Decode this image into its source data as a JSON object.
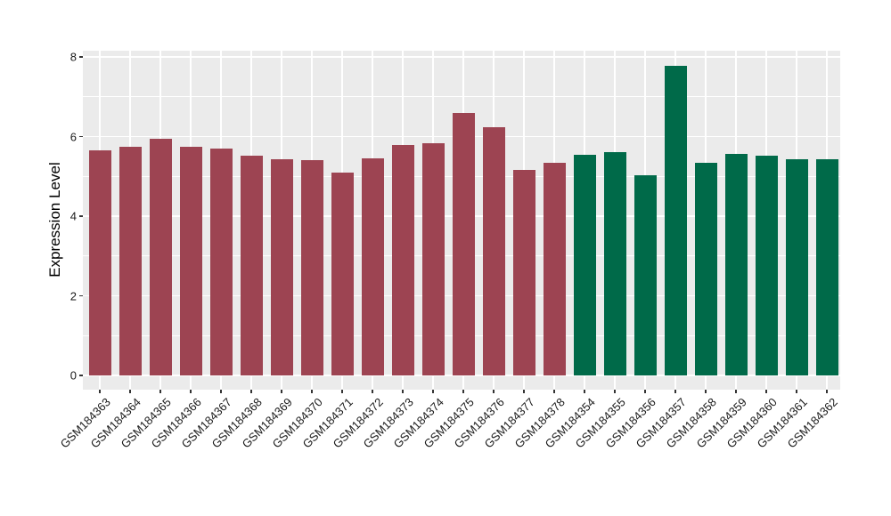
{
  "chart_data": {
    "type": "bar",
    "title": "",
    "xlabel": "",
    "ylabel": "Expression Level",
    "ylim": [
      -0.36,
      8.16
    ],
    "yticks": [
      0,
      2,
      4,
      6,
      8
    ],
    "yminorticks": [
      1,
      3,
      5,
      7
    ],
    "grid": "on",
    "legend_position": "none",
    "panel_background": "#EBEBEB",
    "gridline_color": "#FFFFFF",
    "tick_color": "#333333",
    "axis_text_color": "#1a1a1a",
    "categories": [
      "GSM184363",
      "GSM184364",
      "GSM184365",
      "GSM184366",
      "GSM184367",
      "GSM184368",
      "GSM184369",
      "GSM184370",
      "GSM184371",
      "GSM184372",
      "GSM184373",
      "GSM184374",
      "GSM184375",
      "GSM184376",
      "GSM184377",
      "GSM184378",
      "GSM184354",
      "GSM184355",
      "GSM184356",
      "GSM184357",
      "GSM184358",
      "GSM184359",
      "GSM184360",
      "GSM184361",
      "GSM184362"
    ],
    "values": [
      5.65,
      5.74,
      5.95,
      5.74,
      5.7,
      5.53,
      5.44,
      5.4,
      5.1,
      5.46,
      5.78,
      5.83,
      6.59,
      6.24,
      5.17,
      5.33,
      5.55,
      5.6,
      5.03,
      7.78,
      5.33,
      5.57,
      5.52,
      5.43,
      5.43
    ],
    "bar_groups": [
      "red",
      "red",
      "red",
      "red",
      "red",
      "red",
      "red",
      "red",
      "red",
      "red",
      "red",
      "red",
      "red",
      "red",
      "red",
      "red",
      "green",
      "green",
      "green",
      "green",
      "green",
      "green",
      "green",
      "green",
      "green"
    ],
    "group_colors": {
      "red": "#9D4452",
      "green": "#006A49"
    }
  }
}
